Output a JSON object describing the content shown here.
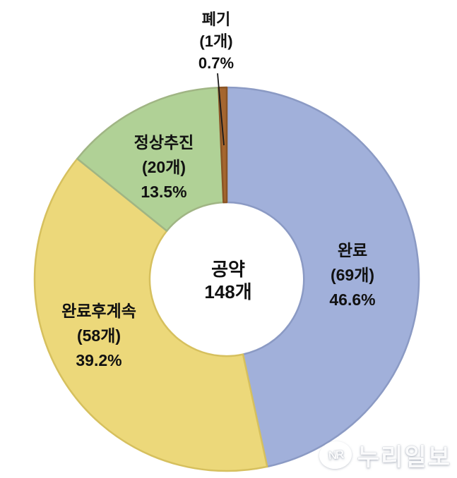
{
  "chart_data": {
    "type": "pie",
    "subtype": "donut",
    "direction": "clockwise",
    "start_angle_deg": 0,
    "total_count": 148,
    "center_label": {
      "title": "공약",
      "total_label": "148개"
    },
    "segments": [
      {
        "label": "완료",
        "count": 69,
        "count_label": "(69개)",
        "percent": 46.6,
        "percent_label": "46.6%",
        "fill": "#a1b0da",
        "stroke": "#8b9ac4"
      },
      {
        "label": "완료후계속",
        "count": 58,
        "count_label": "(58개)",
        "percent": 39.2,
        "percent_label": "39.2%",
        "fill": "#ecd87a",
        "stroke": "#d6c05e"
      },
      {
        "label": "정상추진",
        "count": 20,
        "count_label": "(20개)",
        "percent": 13.5,
        "percent_label": "13.5%",
        "fill": "#b0d196",
        "stroke": "#a0b584"
      },
      {
        "label": "폐기",
        "count": 1,
        "count_label": "(1개)",
        "percent": 0.7,
        "percent_label": "0.7%",
        "fill": "#a5662f",
        "stroke": "#8a5526"
      }
    ]
  },
  "watermark": {
    "logo_initials": "NR",
    "text": "누리일보"
  }
}
